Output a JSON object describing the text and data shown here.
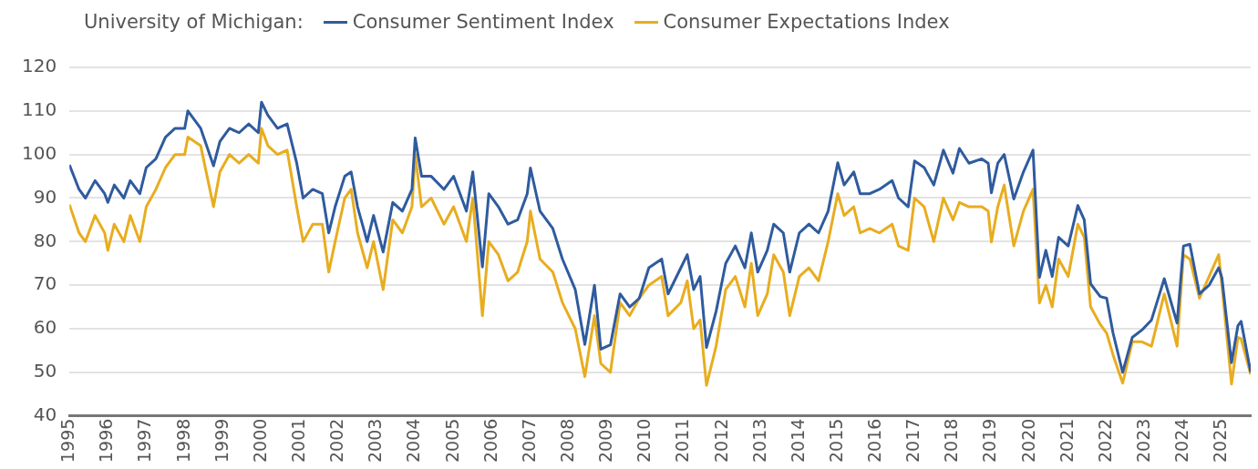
{
  "chart_data": {
    "type": "line",
    "legend_title": "University of Michigan:",
    "legend": "top left",
    "grid": "y",
    "marker": "none",
    "line_style": "solid",
    "x": [
      "1995-01",
      "1995-04",
      "1995-06",
      "1995-09",
      "1995-12",
      "1996-01",
      "1996-03",
      "1996-06",
      "1996-08",
      "1996-11",
      "1997-01",
      "1997-04",
      "1997-07",
      "1997-10",
      "1998-01",
      "1998-02",
      "1998-06",
      "1998-10",
      "1998-12",
      "1999-03",
      "1999-06",
      "1999-09",
      "1999-12",
      "2000-01",
      "2000-03",
      "2000-06",
      "2000-09",
      "2000-12",
      "2001-02",
      "2001-05",
      "2001-08",
      "2001-10",
      "2001-12",
      "2002-03",
      "2002-05",
      "2002-07",
      "2002-10",
      "2002-12",
      "2003-03",
      "2003-06",
      "2003-09",
      "2003-12",
      "2004-01",
      "2004-03",
      "2004-06",
      "2004-10",
      "2005-01",
      "2005-05",
      "2005-07",
      "2005-10",
      "2005-12",
      "2006-03",
      "2006-06",
      "2006-09",
      "2006-12",
      "2007-01",
      "2007-04",
      "2007-08",
      "2007-11",
      "2008-03",
      "2008-06",
      "2008-09",
      "2008-11",
      "2009-02",
      "2009-05",
      "2009-08",
      "2009-11",
      "2010-02",
      "2010-06",
      "2010-08",
      "2010-12",
      "2011-02",
      "2011-04",
      "2011-06",
      "2011-08",
      "2011-11",
      "2012-02",
      "2012-05",
      "2012-08",
      "2012-10",
      "2012-12",
      "2013-03",
      "2013-05",
      "2013-08",
      "2013-10",
      "2014-01",
      "2014-04",
      "2014-07",
      "2014-10",
      "2015-01",
      "2015-03",
      "2015-06",
      "2015-08",
      "2015-11",
      "2016-02",
      "2016-06",
      "2016-08",
      "2016-11",
      "2017-01",
      "2017-04",
      "2017-07",
      "2017-10",
      "2018-01",
      "2018-03",
      "2018-06",
      "2018-10",
      "2018-12",
      "2019-01",
      "2019-03",
      "2019-05",
      "2019-08",
      "2019-11",
      "2020-02",
      "2020-04",
      "2020-06",
      "2020-08",
      "2020-10",
      "2021-01",
      "2021-04",
      "2021-06",
      "2021-08",
      "2021-11",
      "2022-01",
      "2022-03",
      "2022-06",
      "2022-09",
      "2022-12",
      "2023-03",
      "2023-07",
      "2023-11",
      "2024-01",
      "2024-03",
      "2024-06",
      "2024-09",
      "2024-12",
      "2025-01",
      "2025-04",
      "2025-06",
      "2025-07",
      "2025-10"
    ],
    "xlim": [
      "1995-01",
      "2025-10"
    ],
    "xticks": [
      "1995",
      "1996",
      "1997",
      "1998",
      "1999",
      "2000",
      "2001",
      "2002",
      "2003",
      "2004",
      "2005",
      "2006",
      "2007",
      "2008",
      "2009",
      "2010",
      "2011",
      "2012",
      "2013",
      "2014",
      "2015",
      "2016",
      "2017",
      "2018",
      "2019",
      "2020",
      "2021",
      "2022",
      "2023",
      "2024",
      "2025"
    ],
    "ylim": [
      40,
      120
    ],
    "yticks": [
      40,
      50,
      60,
      70,
      80,
      90,
      100,
      110,
      120
    ],
    "series": [
      {
        "name": "Consumer Sentiment Index",
        "color": "#2f5b9e",
        "values": [
          97.6,
          92,
          90,
          94,
          91,
          89,
          93,
          90,
          94,
          91,
          97,
          99,
          104,
          106,
          106,
          110,
          106,
          97.4,
          103,
          106,
          105,
          107,
          105,
          112,
          109,
          106,
          107,
          98,
          90,
          92,
          91,
          82,
          88,
          95,
          96,
          88,
          80,
          86,
          77.6,
          89,
          87,
          92,
          103.8,
          95,
          95,
          92,
          95,
          87,
          96,
          74.2,
          91,
          88,
          84,
          85,
          91,
          96.9,
          87,
          83,
          76,
          69,
          56.4,
          70,
          55.3,
          56.3,
          68,
          65,
          67,
          74,
          76,
          68,
          74,
          77,
          69,
          72,
          55.7,
          64,
          75,
          79,
          74,
          82,
          73,
          78,
          84,
          82,
          73,
          82,
          84,
          82,
          87,
          98.1,
          93,
          96,
          91,
          91,
          92,
          94,
          90,
          88,
          98.5,
          97,
          93,
          101,
          95.7,
          101.4,
          98,
          99,
          98,
          91.2,
          98,
          100,
          89.8,
          96,
          101,
          71.8,
          78,
          72,
          81,
          79,
          88.3,
          85,
          70.3,
          67.4,
          67,
          59,
          50,
          58,
          59.7,
          62,
          71.5,
          61.3,
          79,
          79.4,
          68,
          70,
          74,
          71.7,
          52.2,
          60.7,
          61.7,
          50
        ]
      },
      {
        "name": "Consumer Expectations Index",
        "color": "#e8ad1f",
        "values": [
          88.5,
          82,
          80,
          86,
          82,
          78,
          84,
          80,
          86,
          80,
          88,
          92,
          97,
          100,
          100,
          104,
          102,
          88,
          96,
          100,
          98,
          100,
          98,
          106,
          102,
          100,
          101,
          88,
          80,
          84,
          84,
          73,
          80,
          90,
          92,
          82,
          74,
          80,
          69,
          85,
          82,
          88,
          100,
          88,
          90,
          84,
          88,
          80,
          90,
          63,
          80,
          77,
          71,
          73,
          80,
          87,
          76,
          73,
          66,
          60,
          49,
          63,
          52,
          50,
          66,
          63,
          67,
          70,
          72,
          63,
          66,
          71,
          60,
          62,
          47,
          56,
          69,
          72,
          65,
          75,
          63,
          68,
          77,
          73,
          63,
          72,
          74,
          71,
          80,
          91,
          86,
          88,
          82,
          83,
          82,
          84,
          79,
          78,
          90,
          88,
          80,
          90,
          85,
          89,
          88,
          88,
          87,
          79.9,
          88,
          93,
          79,
          87,
          92,
          65.9,
          70,
          65,
          76,
          72,
          84,
          81,
          65,
          61,
          59,
          54,
          47.5,
          57,
          57,
          56,
          68,
          56,
          77,
          76,
          67,
          72,
          77,
          70,
          47.3,
          58,
          57.7,
          49.5
        ]
      }
    ]
  }
}
